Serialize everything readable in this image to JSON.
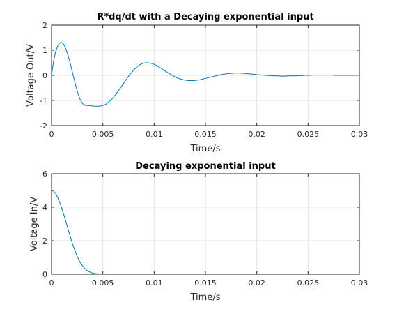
{
  "chart_data": [
    {
      "type": "line",
      "title": "R*dq/dt with a Decaying exponential input",
      "xlabel": "Time/s",
      "ylabel": "Voltage Out/V",
      "xlim": [
        0,
        0.03
      ],
      "ylim": [
        -2,
        2
      ],
      "xticks": [
        0,
        0.005,
        0.01,
        0.015,
        0.02,
        0.025,
        0.03
      ],
      "xtick_labels": [
        "0",
        "0.005",
        "0.01",
        "0.015",
        "0.02",
        "0.025",
        "0.03"
      ],
      "yticks": [
        -2,
        -1,
        0,
        1,
        2
      ],
      "ytick_labels": [
        "-2",
        "-1",
        "0",
        "1",
        "2"
      ],
      "grid": true,
      "color": "#0072BD",
      "series": [
        {
          "x": [
            0,
            0.0002,
            0.0004,
            0.0006,
            0.0008,
            0.001,
            0.0012,
            0.0014,
            0.0016,
            0.0018,
            0.002,
            0.0022,
            0.0024,
            0.0026,
            0.0028,
            0.003,
            0.0032,
            0.0034,
            0.0036,
            0.0038,
            0.004,
            0.0042,
            0.0044,
            0.0046,
            0.0048,
            0.005,
            0.0052,
            0.0054,
            0.0056,
            0.0058,
            0.006,
            0.0062,
            0.0064,
            0.0066,
            0.0068,
            0.007,
            0.0072,
            0.0074,
            0.0076,
            0.0078,
            0.008,
            0.0082,
            0.0084,
            0.0086,
            0.0088,
            0.009,
            0.0092,
            0.0094,
            0.0096,
            0.0098,
            0.01,
            0.0102,
            0.0104,
            0.0106,
            0.0108,
            0.011,
            0.0112,
            0.0114,
            0.0116,
            0.0118,
            0.012,
            0.0122,
            0.0124,
            0.0126,
            0.0128,
            0.013,
            0.0132,
            0.0134,
            0.0136,
            0.0138,
            0.014,
            0.0142,
            0.0144,
            0.0146,
            0.0148,
            0.015,
            0.0152,
            0.0154,
            0.0156,
            0.0158,
            0.016,
            0.0162,
            0.0164,
            0.0166,
            0.0168,
            0.017,
            0.0172,
            0.0174,
            0.0176,
            0.0178,
            0.018,
            0.0182,
            0.0184,
            0.0186,
            0.0188,
            0.019,
            0.0192,
            0.0194,
            0.0196,
            0.0198,
            0.02,
            0.0202,
            0.0204,
            0.0206,
            0.0208,
            0.021,
            0.0212,
            0.0214,
            0.0216,
            0.0218,
            0.022,
            0.0222,
            0.0224,
            0.0226,
            0.0228,
            0.023,
            0.0232,
            0.0234,
            0.0236,
            0.0238,
            0.024,
            0.0242,
            0.0244,
            0.0246,
            0.0248,
            0.025,
            0.0252,
            0.0254,
            0.0256,
            0.0258,
            0.026,
            0.0262,
            0.0264,
            0.0266,
            0.0268,
            0.027,
            0.0272,
            0.0274,
            0.0276,
            0.0278,
            0.028,
            0.0282,
            0.0284,
            0.0286,
            0.0288,
            0.029,
            0.0292,
            0.0294,
            0.0296,
            0.0298,
            0.03
          ],
          "y": [
            0.0,
            0.57,
            0.94,
            1.17,
            1.29,
            1.31,
            1.23,
            1.05,
            0.81,
            0.51,
            0.18,
            -0.15,
            -0.47,
            -0.75,
            -0.97,
            -1.11,
            -1.19,
            -1.2,
            -1.2,
            -1.21,
            -1.22,
            -1.23,
            -1.23,
            -1.23,
            -1.22,
            -1.2,
            -1.17,
            -1.12,
            -1.05,
            -0.98,
            -0.89,
            -0.79,
            -0.68,
            -0.57,
            -0.45,
            -0.33,
            -0.21,
            -0.1,
            0.01,
            0.11,
            0.21,
            0.29,
            0.36,
            0.42,
            0.46,
            0.49,
            0.5,
            0.5,
            0.49,
            0.47,
            0.44,
            0.4,
            0.35,
            0.3,
            0.25,
            0.19,
            0.14,
            0.09,
            0.04,
            -0.01,
            -0.05,
            -0.09,
            -0.12,
            -0.15,
            -0.17,
            -0.19,
            -0.2,
            -0.21,
            -0.21,
            -0.21,
            -0.2,
            -0.19,
            -0.18,
            -0.16,
            -0.14,
            -0.12,
            -0.1,
            -0.08,
            -0.06,
            -0.04,
            -0.02,
            0.0,
            0.02,
            0.03,
            0.05,
            0.06,
            0.07,
            0.08,
            0.08,
            0.09,
            0.09,
            0.09,
            0.09,
            0.08,
            0.08,
            0.07,
            0.06,
            0.06,
            0.05,
            0.04,
            0.03,
            0.02,
            0.02,
            0.01,
            0.0,
            -0.0,
            -0.01,
            -0.01,
            -0.02,
            -0.02,
            -0.02,
            -0.02,
            -0.03,
            -0.03,
            -0.03,
            -0.02,
            -0.02,
            -0.02,
            -0.02,
            -0.02,
            -0.01,
            -0.01,
            -0.01,
            -0.0,
            0.0,
            0.0,
            0.0,
            0.01,
            0.01,
            0.01,
            0.01,
            0.01,
            0.01,
            0.01,
            0.01,
            0.01,
            0.01,
            0.01,
            0.0,
            0.0,
            0.0,
            0.0,
            0.0,
            0.0,
            -0.0,
            -0.0,
            -0.0,
            -0.0,
            -0.0,
            -0.0,
            -0.0
          ]
        }
      ]
    },
    {
      "type": "line",
      "title": "Decaying exponential input",
      "xlabel": "Time/s",
      "ylabel": "Voltage In/V",
      "xlim": [
        0,
        0.03
      ],
      "ylim": [
        0,
        6
      ],
      "xticks": [
        0,
        0.005,
        0.01,
        0.015,
        0.02,
        0.025,
        0.03
      ],
      "xtick_labels": [
        "0",
        "0.005",
        "0.01",
        "0.015",
        "0.02",
        "0.025",
        "0.03"
      ],
      "yticks": [
        0,
        2,
        4,
        6
      ],
      "ytick_labels": [
        "0",
        "2",
        "4",
        "6"
      ],
      "grid": true,
      "color": "#0072BD",
      "series": [
        {
          "x": [
            0,
            0.0002,
            0.0004,
            0.0006,
            0.0008,
            0.001,
            0.0012,
            0.0014,
            0.0016,
            0.0018,
            0.002,
            0.0022,
            0.0024,
            0.0026,
            0.0028,
            0.003,
            0.0032,
            0.0034,
            0.0036,
            0.0038,
            0.004,
            0.0042,
            0.0044,
            0.0046,
            0.0048,
            0.005,
            0.006,
            0.008,
            0.01,
            0.015,
            0.02,
            0.025,
            0.03
          ],
          "y": [
            5.0,
            4.96,
            4.81,
            4.59,
            4.29,
            3.94,
            3.55,
            3.14,
            2.71,
            2.3,
            1.9,
            1.54,
            1.21,
            0.93,
            0.7,
            0.51,
            0.36,
            0.25,
            0.17,
            0.11,
            0.07,
            0.04,
            0.03,
            0.02,
            0.01,
            0.0,
            0.0,
            0.0,
            0.0,
            0.0,
            0.0,
            0.0,
            0.0
          ]
        }
      ]
    }
  ]
}
